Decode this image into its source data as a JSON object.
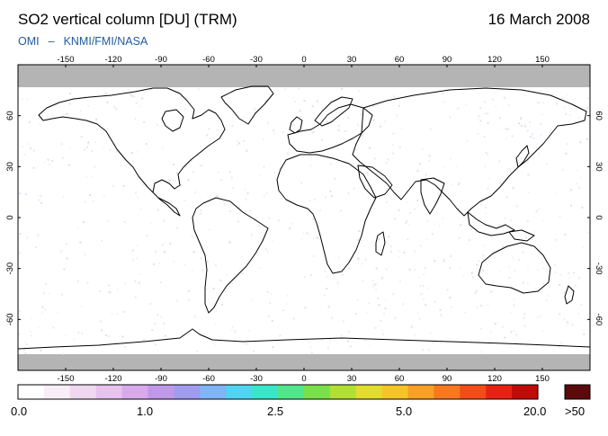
{
  "header": {
    "title": "SO2 vertical column [DU] (TRM)",
    "date": "16 March 2008",
    "credit_left": "OMI",
    "credit_sep": "–",
    "credit_right": "KNMI/FMI/NASA"
  },
  "map": {
    "projection": "equirectangular",
    "lon_range": [
      -180,
      180
    ],
    "lat_range": [
      -90,
      90
    ],
    "lon_ticks": [
      "-150",
      "-120",
      "-90",
      "-60",
      "-30",
      "0",
      "30",
      "60",
      "90",
      "120",
      "150"
    ],
    "lat_ticks": [
      "60",
      "30",
      "0",
      "-30",
      "-60"
    ],
    "no_data_color": "#b4b4b4",
    "ocean_color": "#ffffff",
    "coast_color": "#000000"
  },
  "colorbar": {
    "labels": [
      "0.0",
      "1.0",
      "2.5",
      "5.0",
      "20.0"
    ],
    "overflow_label": ">50",
    "overflow_color": "#5a0a0a",
    "colors": [
      "#ffffff",
      "#f7eef7",
      "#f0d8f0",
      "#e6c2ee",
      "#d8aaec",
      "#bf98ea",
      "#9f9cf0",
      "#7fb4f6",
      "#4fd4f4",
      "#38e6c8",
      "#52e68a",
      "#7ae04a",
      "#b0e034",
      "#e2dc2e",
      "#f5c426",
      "#f8a024",
      "#f8781e",
      "#f44c18",
      "#e82212",
      "#c00a0a"
    ]
  }
}
